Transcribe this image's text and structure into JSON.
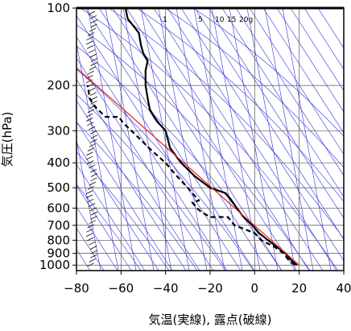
{
  "chart_data": {
    "type": "line",
    "title": "",
    "xlabel": "気温(実線), 露点(破線)",
    "ylabel": "気圧(hPa)",
    "xlim": [
      -80,
      40
    ],
    "ylim": [
      1050,
      100
    ],
    "yscale": "log",
    "x_ticks": [
      "−80",
      "−60",
      "−40",
      "−20",
      "0",
      "20",
      "40"
    ],
    "x_tick_values": [
      -80,
      -60,
      -40,
      -20,
      0,
      20,
      40
    ],
    "y_ticks": [
      "100",
      "200",
      "300",
      "400",
      "500",
      "600",
      "700",
      "800",
      "900",
      "1000"
    ],
    "y_tick_values": [
      100,
      200,
      300,
      400,
      500,
      600,
      700,
      800,
      900,
      1000
    ],
    "grid": true,
    "mixing_ratio_labels": [
      "1",
      "5",
      "10",
      "15",
      "20g"
    ],
    "mixing_ratio_values": [
      1,
      5,
      10,
      15,
      20
    ],
    "series": [
      {
        "role": "temperature",
        "style": "solid",
        "color": "#000000",
        "points": [
          [
            19,
            1000
          ],
          [
            16,
            950
          ],
          [
            14,
            900
          ],
          [
            10,
            850
          ],
          [
            6,
            800
          ],
          [
            2,
            750
          ],
          [
            -1,
            700
          ],
          [
            -5,
            650
          ],
          [
            -8,
            600
          ],
          [
            -11,
            550
          ],
          [
            -13,
            525
          ],
          [
            -20,
            500
          ],
          [
            -27,
            450
          ],
          [
            -33,
            400
          ],
          [
            -38,
            350
          ],
          [
            -40,
            300
          ],
          [
            -44,
            275
          ],
          [
            -47,
            250
          ],
          [
            -48,
            225
          ],
          [
            -49,
            200
          ],
          [
            -49,
            175
          ],
          [
            -48,
            160
          ],
          [
            -50,
            150
          ],
          [
            -51,
            140
          ],
          [
            -52,
            125
          ],
          [
            -57,
            110
          ],
          [
            -58,
            100
          ]
        ]
      },
      {
        "role": "dewpoint",
        "style": "dashed",
        "color": "#000000",
        "points": [
          [
            18,
            1000
          ],
          [
            15,
            950
          ],
          [
            13,
            900
          ],
          [
            9,
            850
          ],
          [
            3,
            800
          ],
          [
            0,
            750
          ],
          [
            -9,
            700
          ],
          [
            -12,
            650
          ],
          [
            -20,
            650
          ],
          [
            -24,
            620
          ],
          [
            -26,
            600
          ],
          [
            -28,
            570
          ],
          [
            -25,
            560
          ],
          [
            -28,
            525
          ],
          [
            -30,
            500
          ],
          [
            -35,
            450
          ],
          [
            -40,
            400
          ],
          [
            -46,
            360
          ],
          [
            -52,
            320
          ],
          [
            -59,
            280
          ],
          [
            -61,
            265
          ],
          [
            -67,
            265
          ],
          [
            -72,
            240
          ],
          [
            -74,
            225
          ],
          [
            -75,
            200
          ]
        ]
      },
      {
        "role": "reference",
        "style": "solid",
        "color": "#e03030",
        "points": [
          [
            20,
            1000
          ],
          [
            -82,
            165
          ]
        ]
      }
    ],
    "background_colors": {
      "isotherm_adiabat": "#3030dd",
      "grid": "#555555",
      "frame": "#000000"
    }
  }
}
